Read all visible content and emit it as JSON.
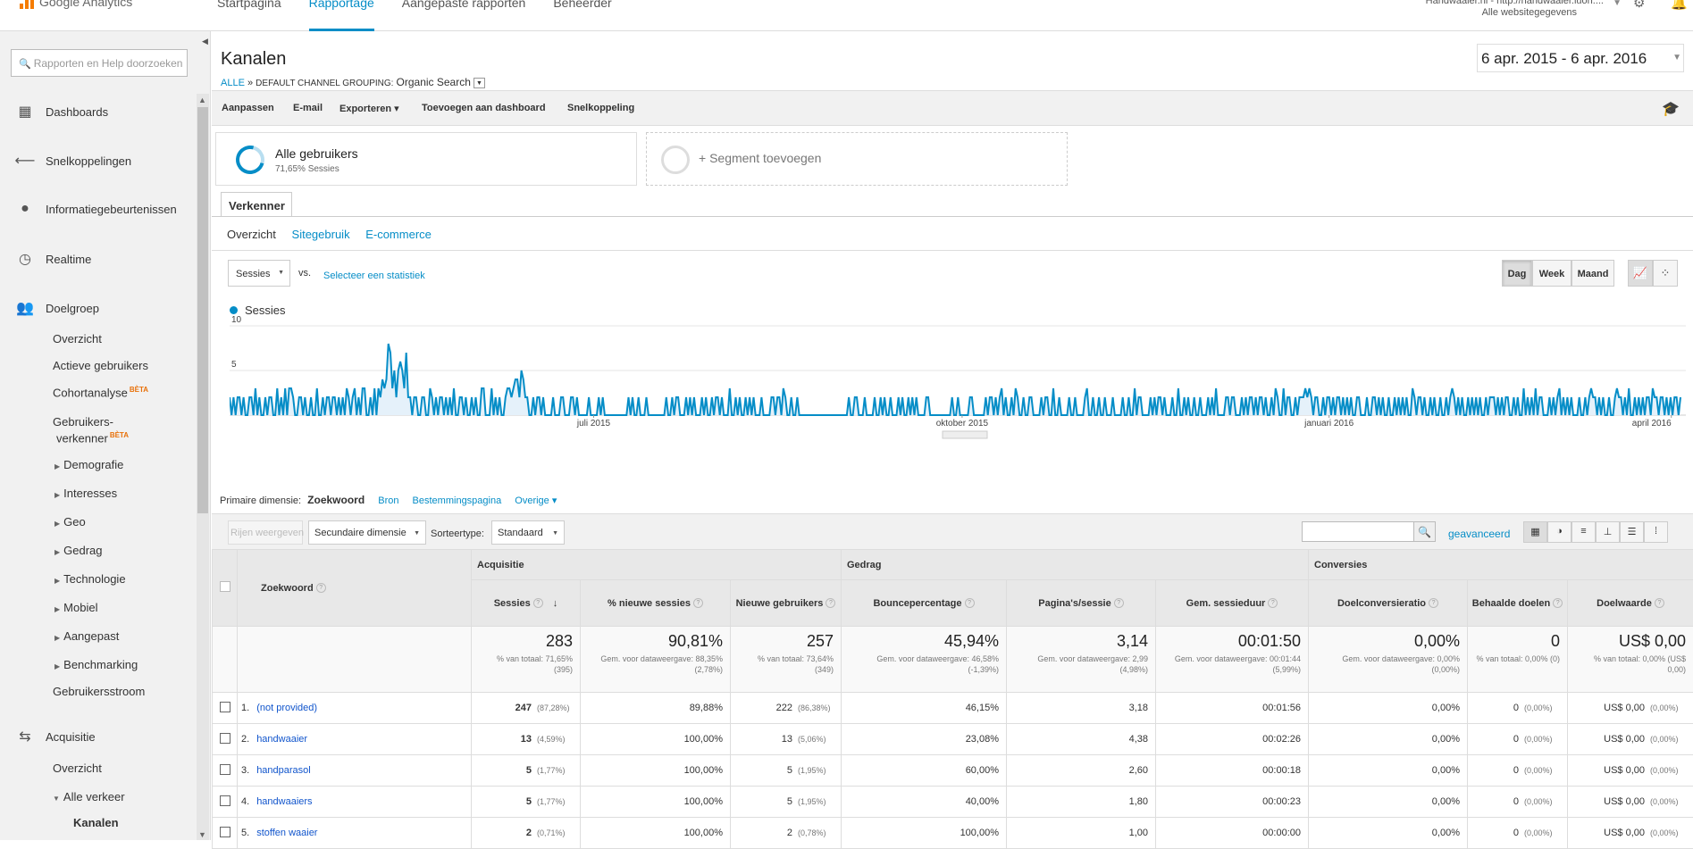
{
  "app": {
    "name": "Google Analytics"
  },
  "topnav": [
    "Startpagina",
    "Rapportage",
    "Aangepaste rapporten",
    "Beheerder"
  ],
  "account": {
    "line1": "Handwaaier.nl - http://handwaaier.luon....",
    "line2": "Alle websitegegevens"
  },
  "sidebar": {
    "search_placeholder": "Rapporten en Help doorzoeken",
    "main": [
      {
        "label": "Dashboards",
        "icon": "dashboard-grid-icon"
      },
      {
        "label": "Snelkoppelingen",
        "icon": "shortcut-arrow-icon"
      },
      {
        "label": "Informatiegebeurtenissen",
        "icon": "lightbulb-icon"
      },
      {
        "label": "Realtime",
        "icon": "clock-icon"
      },
      {
        "label": "Doelgroep",
        "icon": "people-icon"
      }
    ],
    "audience": {
      "overzicht": "Overzicht",
      "actief": "Actieve gebruikers",
      "cohort": "Cohortanalyse",
      "explorer1": "Gebruikers-",
      "explorer2": "verkenner",
      "beta": "BÈTA",
      "subs": [
        "Demografie",
        "Interesses",
        "Geo",
        "Gedrag",
        "Technologie",
        "Mobiel",
        "Aangepast",
        "Benchmarking"
      ],
      "flow": "Gebruikersstroom"
    },
    "acquisition": {
      "label": "Acquisitie",
      "overzicht": "Overzicht",
      "alle": "Alle verkeer",
      "kanalen": "Kanalen"
    }
  },
  "page": {
    "title": "Kanalen",
    "breadcrumb": {
      "alle": "ALLE",
      "sep": "»",
      "grouping": "DEFAULT CHANNEL GROUPING:",
      "value": "Organic Search"
    },
    "date_range": "6 apr. 2015 - 6 apr. 2016"
  },
  "toolbar": [
    "Aanpassen",
    "E-mail",
    "Exporteren ▾",
    "Toevoegen aan dashboard",
    "Snelkoppeling"
  ],
  "segments": {
    "all_name": "Alle gebruikers",
    "all_sub": "71,65% Sessies",
    "add": "+ Segment toevoegen"
  },
  "explorer": {
    "tab": "Verkenner",
    "subtabs": [
      "Overzicht",
      "Sitegebruik",
      "E-commerce"
    ]
  },
  "chart_controls": {
    "metric": "Sessies",
    "vs": "vs.",
    "pick": "Selecteer een statistiek",
    "periods": [
      "Dag",
      "Week",
      "Maand"
    ]
  },
  "chart_data": {
    "type": "area",
    "series": [
      {
        "name": "Sessies",
        "color": "#058dc7",
        "values": [
          2,
          0,
          2,
          0,
          2,
          2,
          0,
          2,
          0,
          0,
          2,
          2,
          0,
          3,
          0,
          2,
          0,
          0,
          2,
          0,
          2,
          2,
          0,
          0,
          3,
          0,
          2,
          0,
          3,
          0,
          3,
          3,
          2,
          0,
          0,
          2,
          2,
          0,
          2,
          0,
          0,
          2,
          0,
          0,
          3,
          0,
          0,
          2,
          0,
          2,
          2,
          0,
          2,
          2,
          0,
          2,
          0,
          2,
          0,
          3,
          2,
          0,
          2,
          3,
          0,
          2,
          0,
          3,
          3,
          0,
          0,
          2,
          0,
          3,
          0,
          3,
          2,
          4,
          3,
          4,
          8,
          7,
          3,
          5,
          2,
          5,
          6,
          5,
          3,
          7,
          2,
          2,
          0,
          2,
          2,
          0,
          0,
          2,
          2,
          0,
          0,
          3,
          2,
          0,
          2,
          0,
          2,
          2,
          0,
          2,
          0,
          2,
          0,
          3,
          0,
          0,
          2,
          2,
          0,
          2,
          0,
          0,
          2,
          0,
          2,
          0,
          0,
          3,
          3,
          0,
          0,
          0,
          3,
          0,
          2,
          0,
          2,
          0,
          0,
          2,
          3,
          3,
          2,
          3,
          4,
          4,
          2,
          5,
          4,
          2,
          2,
          0,
          0,
          2,
          0,
          2,
          2,
          0,
          2,
          0,
          0,
          0,
          0,
          2,
          0,
          0,
          0,
          2,
          2,
          0,
          0,
          0,
          2,
          2,
          0,
          2,
          0,
          0,
          0,
          0,
          0,
          2,
          0,
          0,
          0,
          0,
          2,
          0,
          2,
          0,
          0,
          0,
          0,
          0,
          0,
          0,
          0,
          0,
          0,
          0,
          0,
          2,
          0,
          2,
          0,
          0,
          2,
          0,
          0,
          0,
          2,
          0,
          0,
          0,
          0,
          0,
          0,
          0,
          0,
          0,
          2,
          0,
          0,
          2,
          0,
          2,
          2,
          0,
          0,
          0,
          2,
          0,
          2,
          0,
          2,
          0,
          0,
          0,
          2,
          0,
          2,
          0,
          0,
          2,
          0,
          2,
          2,
          0,
          2,
          0,
          0,
          0,
          3,
          0,
          0,
          2,
          0,
          2,
          0,
          0,
          2,
          0,
          2,
          0,
          2,
          0,
          0,
          0,
          2,
          0,
          0,
          0,
          0,
          2,
          2,
          0,
          2,
          2,
          0,
          3,
          2,
          0,
          0,
          2,
          0,
          0,
          2,
          0,
          0,
          0,
          0,
          0,
          0,
          0,
          0,
          0,
          0,
          0,
          0,
          0,
          0,
          0,
          0,
          0,
          0,
          0,
          0,
          0,
          0,
          0,
          0,
          0,
          2,
          0,
          0,
          2,
          2,
          0,
          0,
          0,
          2,
          0,
          0,
          0,
          0,
          2,
          0,
          0,
          2,
          0,
          2,
          0,
          0,
          2,
          0,
          0,
          0,
          2,
          0,
          2,
          0,
          0,
          2,
          0,
          2,
          0,
          2,
          0,
          0,
          0,
          0,
          2,
          2,
          0,
          0,
          0,
          0,
          0,
          0,
          0,
          0,
          0,
          0,
          0,
          2,
          0,
          0,
          2,
          0,
          0,
          0,
          0,
          0,
          2,
          2,
          0,
          0,
          0,
          0,
          0,
          0,
          2,
          0,
          2,
          2,
          0,
          2,
          0,
          2,
          3,
          0,
          2,
          0,
          0,
          2,
          0,
          3,
          2,
          0,
          0,
          2,
          0,
          0,
          2,
          2,
          0,
          0,
          0,
          0,
          2,
          0,
          2,
          2,
          0,
          0,
          3,
          0,
          0,
          2,
          0,
          0,
          0,
          0,
          2,
          0,
          0,
          2,
          0,
          0,
          0,
          0,
          2,
          3,
          0,
          0,
          2,
          0,
          0,
          2,
          0,
          0,
          2,
          0,
          0,
          0,
          2,
          0,
          0,
          0,
          0,
          2,
          0,
          0,
          2,
          0,
          0,
          3,
          0,
          2,
          2,
          0,
          0,
          0,
          0,
          2,
          0,
          2,
          0,
          2,
          2,
          0,
          2,
          0,
          0,
          0,
          2,
          0,
          0,
          3,
          0,
          0,
          2,
          0,
          2,
          0,
          0,
          2,
          0,
          0,
          2,
          0,
          0,
          0,
          2,
          0,
          2,
          0,
          3,
          0,
          0,
          0,
          0,
          2,
          2,
          0,
          2,
          2,
          0,
          0,
          0,
          2,
          0,
          2,
          0,
          2,
          2,
          0,
          2,
          0,
          2,
          2,
          0,
          2,
          0,
          0,
          2,
          0,
          3,
          2,
          0,
          0,
          3,
          0,
          2,
          2,
          0,
          0,
          2,
          0,
          2,
          2,
          2,
          3,
          2,
          3,
          2,
          0,
          2,
          2,
          0,
          0,
          2,
          0,
          2,
          2,
          0,
          2,
          0,
          2,
          2,
          0,
          2,
          0,
          2,
          0,
          2,
          0,
          0,
          2,
          2,
          0,
          0,
          0,
          2,
          0,
          0,
          2,
          2,
          0,
          2,
          0,
          2,
          0,
          0,
          2,
          0,
          0,
          2,
          0,
          2,
          0,
          2,
          0,
          2,
          0,
          0,
          3,
          2,
          0,
          2,
          2,
          0,
          2,
          0,
          0,
          2,
          0,
          2,
          0,
          0,
          2,
          0,
          0,
          2,
          0,
          2,
          3,
          2,
          0,
          2,
          0,
          2,
          0,
          0,
          2,
          0,
          2,
          0,
          2,
          0,
          2,
          0,
          0,
          2,
          0,
          2,
          2,
          2,
          0,
          2,
          0,
          2,
          0,
          2,
          2,
          0,
          0,
          2,
          0,
          2,
          0,
          0,
          3,
          0,
          2,
          0,
          2,
          0,
          3,
          0,
          2,
          2,
          0,
          0,
          0,
          2,
          0,
          2,
          0,
          2,
          3,
          0,
          2,
          0,
          2,
          0,
          2,
          0,
          0,
          0,
          2,
          0,
          0,
          2,
          0,
          2,
          3,
          2,
          2,
          0,
          2,
          0,
          2,
          0,
          0,
          2,
          0,
          0,
          2,
          3,
          2,
          2,
          0,
          2,
          0,
          3,
          0,
          0,
          2,
          0,
          2,
          0,
          2,
          0,
          2,
          2,
          0,
          3,
          2,
          2,
          0,
          2,
          2,
          0,
          2,
          0,
          2,
          0,
          2,
          2,
          0,
          2
        ]
      }
    ],
    "y_ticks": [
      "5",
      "10"
    ],
    "ylim": [
      0,
      10
    ],
    "x_tick_labels": [
      "juli 2015",
      "oktober 2015",
      "januari 2016",
      "april 2016"
    ],
    "grid": true
  },
  "table_controls": {
    "primary_label": "Primaire dimensie:",
    "primary_current": "Zoekwoord",
    "primary_links": [
      "Bron",
      "Bestemmingspagina",
      "Overige ▾"
    ],
    "rows_btn": "Rijen weergeven",
    "secondary": "Secundaire dimensie",
    "sort_label": "Sorteertype:",
    "sort_value": "Standaard",
    "advanced": "geavanceerd"
  },
  "table": {
    "groups": {
      "keyword": "Zoekwoord",
      "acq": "Acquisitie",
      "beh": "Gedrag",
      "conv": "Conversies"
    },
    "columns": [
      "Sessies",
      "% nieuwe sessies",
      "Nieuwe gebruikers",
      "Bouncepercentage",
      "Pagina's/sessie",
      "Gem. sessieduur",
      "Doelconversieratio",
      "Behaalde doelen",
      "Doelwaarde"
    ],
    "totals": [
      {
        "big": "283",
        "small": "% van totaal: 71,65% (395)"
      },
      {
        "big": "90,81%",
        "small": "Gem. voor dataweergave: 88,35% (2,78%)"
      },
      {
        "big": "257",
        "small": "% van totaal: 73,64% (349)"
      },
      {
        "big": "45,94%",
        "small": "Gem. voor dataweergave: 46,58% (-1,39%)"
      },
      {
        "big": "3,14",
        "small": "Gem. voor dataweergave: 2,99 (4,98%)"
      },
      {
        "big": "00:01:50",
        "small": "Gem. voor dataweergave: 00:01:44 (5,99%)"
      },
      {
        "big": "0,00%",
        "small": "Gem. voor dataweergave: 0,00% (0,00%)"
      },
      {
        "big": "0",
        "small": "% van totaal: 0,00% (0)"
      },
      {
        "big": "US$ 0,00",
        "small": "% van totaal: 0,00% (US$ 0,00)"
      }
    ],
    "rows": [
      {
        "n": "1.",
        "kw": "(not provided)",
        "s": "247",
        "sp": "(87,28%)",
        "ns": "89,88%",
        "nu": "222",
        "nup": "(86,38%)",
        "b": "46,15%",
        "p": "3,18",
        "d": "00:01:56",
        "c": "0,00%",
        "g": "0",
        "gp": "(0,00%)",
        "v": "US$ 0,00",
        "vp": "(0,00%)"
      },
      {
        "n": "2.",
        "kw": "handwaaier",
        "s": "13",
        "sp": "(4,59%)",
        "ns": "100,00%",
        "nu": "13",
        "nup": "(5,06%)",
        "b": "23,08%",
        "p": "4,38",
        "d": "00:02:26",
        "c": "0,00%",
        "g": "0",
        "gp": "(0,00%)",
        "v": "US$ 0,00",
        "vp": "(0,00%)"
      },
      {
        "n": "3.",
        "kw": "handparasol",
        "s": "5",
        "sp": "(1,77%)",
        "ns": "100,00%",
        "nu": "5",
        "nup": "(1,95%)",
        "b": "60,00%",
        "p": "2,60",
        "d": "00:00:18",
        "c": "0,00%",
        "g": "0",
        "gp": "(0,00%)",
        "v": "US$ 0,00",
        "vp": "(0,00%)"
      },
      {
        "n": "4.",
        "kw": "handwaaiers",
        "s": "5",
        "sp": "(1,77%)",
        "ns": "100,00%",
        "nu": "5",
        "nup": "(1,95%)",
        "b": "40,00%",
        "p": "1,80",
        "d": "00:00:23",
        "c": "0,00%",
        "g": "0",
        "gp": "(0,00%)",
        "v": "US$ 0,00",
        "vp": "(0,00%)"
      },
      {
        "n": "5.",
        "kw": "stoffen waaier",
        "s": "2",
        "sp": "(0,71%)",
        "ns": "100,00%",
        "nu": "2",
        "nup": "(0,78%)",
        "b": "100,00%",
        "p": "1,00",
        "d": "00:00:00",
        "c": "0,00%",
        "g": "0",
        "gp": "(0,00%)",
        "v": "US$ 0,00",
        "vp": "(0,00%)"
      }
    ]
  }
}
